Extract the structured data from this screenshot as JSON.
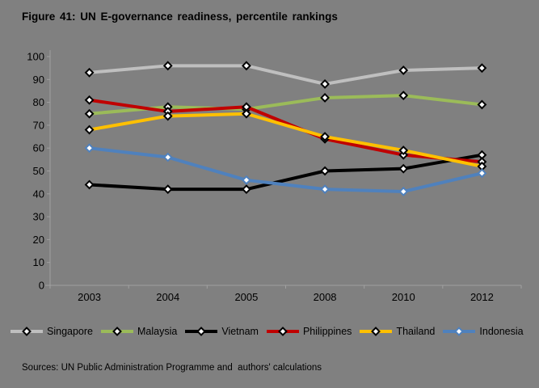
{
  "figure": {
    "title": "Figure 41: UN E-governance readiness, percentile rankings",
    "source": "Sources: UN Public Administration Programme and  authors' calculations"
  },
  "colors": {
    "background": "#808080",
    "axis": "#a0a0a0",
    "text": "#000000",
    "marker_fill": "#ffffff"
  },
  "chart_data": {
    "type": "line",
    "title": "Figure 41: UN E-governance readiness, percentile rankings",
    "categories": [
      "2003",
      "2004",
      "2005",
      "2008",
      "2010",
      "2012"
    ],
    "series": [
      {
        "name": "Singapore",
        "color": "#bfbfbf",
        "marker_outline": "#000000",
        "values": [
          93,
          96,
          96,
          88,
          94,
          95
        ]
      },
      {
        "name": "Malaysia",
        "color": "#9bbb59",
        "marker_outline": "#000000",
        "values": [
          75,
          78,
          77,
          82,
          83,
          79
        ]
      },
      {
        "name": "Vietnam",
        "color": "#000000",
        "marker_outline": "#000000",
        "values": [
          44,
          42,
          42,
          50,
          51,
          57
        ]
      },
      {
        "name": "Philippines",
        "color": "#c00000",
        "marker_outline": "#000000",
        "values": [
          81,
          76,
          78,
          64,
          57,
          54
        ]
      },
      {
        "name": "Thailand",
        "color": "#ffc000",
        "marker_outline": "#000000",
        "values": [
          68,
          74,
          75,
          65,
          59,
          52
        ]
      },
      {
        "name": "Indonesia",
        "color": "#4f81bd",
        "marker_outline": "#4f81bd",
        "values": [
          60,
          56,
          46,
          42,
          41,
          49
        ]
      }
    ],
    "xlabel": "",
    "ylabel": "",
    "ylim": [
      0,
      100
    ],
    "ytick_step": 10,
    "grid": false,
    "legend_position": "bottom",
    "marker": "diamond",
    "source": "Sources: UN Public Administration Programme and  authors' calculations"
  }
}
